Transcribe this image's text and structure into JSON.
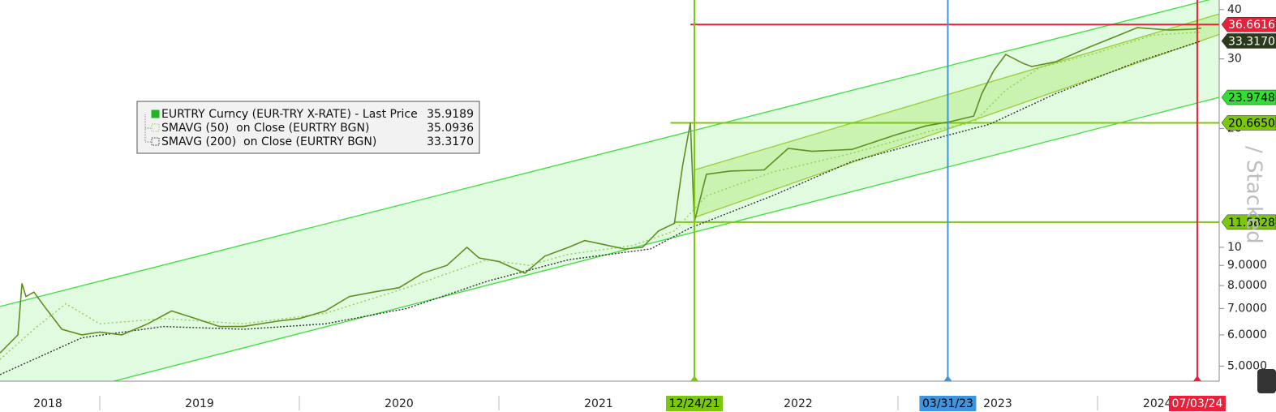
{
  "chart_data": {
    "type": "line",
    "ylog": true,
    "xlim": [
      2018.5,
      2024.61
    ],
    "ylim": [
      4.58,
      42.3
    ],
    "yticks": [
      40,
      30,
      20,
      10,
      {
        "value": 9,
        "label": "9.0000"
      },
      {
        "value": 8,
        "label": "8.0000"
      },
      {
        "value": 7,
        "label": "7.0000"
      },
      {
        "value": 6,
        "label": "6.0000"
      },
      {
        "value": 5,
        "label": "5.0000"
      }
    ],
    "xticks": [
      {
        "value": 2018.74,
        "label": "2018"
      },
      {
        "value": 2019.5,
        "label": "2019"
      },
      {
        "value": 2020.5,
        "label": "2020"
      },
      {
        "value": 2021.5,
        "label": "2021"
      },
      {
        "value": 2022.5,
        "label": "2022"
      },
      {
        "value": 2023.5,
        "label": "2023"
      },
      {
        "value": 2024.3,
        "label": "2024"
      }
    ],
    "xminor": [
      2019,
      2020,
      2021,
      2022,
      2023,
      2024
    ],
    "series": [
      {
        "name": "EURTRY Curncy (EUR-TRY X-RATE) - Last Price",
        "last": 35.9189,
        "color": "#5f8f1f",
        "legend_color": "#22b422",
        "dash": "",
        "x": [
          2018.5,
          2018.59,
          2018.61,
          2018.63,
          2018.67,
          2018.73,
          2018.81,
          2018.91,
          2019.0,
          2019.11,
          2019.24,
          2019.36,
          2019.48,
          2019.6,
          2019.72,
          2019.89,
          2020.0,
          2020.13,
          2020.25,
          2020.37,
          2020.5,
          2020.62,
          2020.74,
          2020.84,
          2020.9,
          2021.0,
          2021.13,
          2021.23,
          2021.35,
          2021.43,
          2021.51,
          2021.63,
          2021.72,
          2021.8,
          2021.88,
          2021.92,
          2021.96,
          2021.98,
          2022.04,
          2022.16,
          2022.33,
          2022.45,
          2022.57,
          2022.77,
          2022.98,
          2023.14,
          2023.26,
          2023.38,
          2023.42,
          2023.48,
          2023.54,
          2023.63,
          2023.67,
          2023.79,
          2023.95,
          2024.11,
          2024.2,
          2024.36,
          2024.48,
          2024.52
        ],
        "values": [
          5.4,
          6.0,
          8.1,
          7.5,
          7.7,
          7.0,
          6.2,
          6.0,
          6.1,
          6.0,
          6.4,
          6.9,
          6.6,
          6.3,
          6.3,
          6.5,
          6.6,
          6.9,
          7.5,
          7.7,
          7.9,
          8.6,
          9.0,
          10.0,
          9.4,
          9.2,
          8.6,
          9.5,
          10.0,
          10.4,
          10.2,
          9.9,
          10.0,
          11.0,
          11.5,
          16.0,
          20.7,
          11.6,
          15.3,
          15.6,
          15.7,
          17.8,
          17.5,
          17.7,
          19.2,
          20.3,
          20.8,
          21.5,
          24.5,
          28.0,
          30.8,
          29.2,
          28.7,
          29.5,
          32.0,
          34.5,
          36.0,
          35.5,
          35.7,
          35.9
        ]
      },
      {
        "name": "SMAVG (50)  on Close (EURTRY BGN)",
        "last": 35.0936,
        "color": "#8fd14f",
        "legend_color": "#8fd14f",
        "dash": "2 3",
        "x": [
          2018.5,
          2018.67,
          2018.83,
          2019.0,
          2019.32,
          2019.72,
          2020.13,
          2020.54,
          2020.94,
          2021.15,
          2021.35,
          2021.67,
          2021.88,
          2022.04,
          2022.37,
          2022.77,
          2023.18,
          2023.38,
          2023.54,
          2023.71,
          2023.99,
          2024.28,
          2024.52
        ],
        "values": [
          5.2,
          6.2,
          7.2,
          6.4,
          6.6,
          6.4,
          6.8,
          7.9,
          9.3,
          9.0,
          9.6,
          10.1,
          11.0,
          13.5,
          15.5,
          17.3,
          19.8,
          20.7,
          25.0,
          28.5,
          31.0,
          34.5,
          35.1
        ]
      },
      {
        "name": "SMAVG (200)  on Close (EURTRY BGN)",
        "last": 33.317,
        "last_label": "33.3170",
        "color": "#333333",
        "legend_color": "#333333",
        "dash": "2 2",
        "x": [
          2018.5,
          2018.91,
          2019.32,
          2019.72,
          2020.13,
          2020.54,
          2020.94,
          2021.35,
          2021.76,
          2021.96,
          2022.37,
          2022.77,
          2023.18,
          2023.46,
          2023.79,
          2024.2,
          2024.52
        ],
        "values": [
          4.76,
          5.9,
          6.3,
          6.2,
          6.4,
          7.0,
          8.2,
          9.3,
          9.9,
          11.2,
          13.5,
          16.5,
          18.8,
          20.5,
          24.5,
          29.5,
          33.3
        ]
      }
    ],
    "channels": [
      {
        "x": [
          2018.5,
          2024.61
        ],
        "upper": [
          7.08,
          43
        ],
        "lower_x": [
          2019.07,
          2024.61
        ],
        "lower": [
          4.58,
          23.9748
        ],
        "fill": "#dcfadc",
        "line": "#3ce03c"
      },
      {
        "x": [
          2021.98,
          2024.61
        ],
        "upper": [
          15.7,
          39
        ],
        "lower_x": [
          2021.98,
          2024.61
        ],
        "lower": [
          11.9,
          34.6
        ],
        "fill": "#c5f0a8",
        "line": "#9acd32"
      }
    ],
    "hlines": [
      {
        "value": 36.6616,
        "x_start": 2021.96,
        "color": "#e8213b"
      },
      {
        "value": 20.665,
        "label": "20.6650",
        "x_start": 2021.86,
        "color": "#7ac70c"
      },
      {
        "value": 11.5828,
        "x_start": 2021.88,
        "color": "#7ac70c"
      }
    ],
    "flags": [
      {
        "value": 36.6616,
        "color": "#e8213b",
        "text_color": "#ffffff"
      },
      {
        "value": 33.317,
        "label": "33.3170",
        "color": "#2b3a1a",
        "text_color": "#ffffff"
      },
      {
        "value": 23.9748,
        "color": "#33dd33",
        "text_color": "#000000"
      },
      {
        "value": 20.665,
        "label": "20.6650",
        "color": "#7ac70c",
        "text_color": "#000000"
      },
      {
        "value": 11.5828,
        "color": "#7ac70c",
        "text_color": "#000000"
      }
    ],
    "vlines": [
      {
        "x": 2021.98,
        "label": "12/24/21",
        "color": "#7ac70c",
        "text_color": "#000000"
      },
      {
        "x": 2023.25,
        "label": "03/31/23",
        "color": "#3d95e0",
        "text_color": "#000000"
      },
      {
        "x": 2024.5,
        "label": "07/03/24",
        "color": "#e8213b",
        "text_color": "#ffffff"
      }
    ],
    "watermark": "/ Stacked"
  }
}
